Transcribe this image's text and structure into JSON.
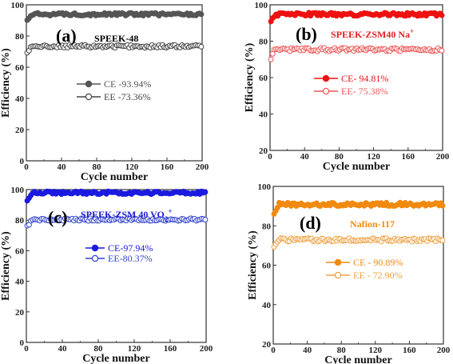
{
  "chart_data": [
    {
      "type": "scatter",
      "panel_label": "(a)",
      "name_label": "SPEEK-48",
      "name_color": "#000000",
      "xlabel": "Cycle number",
      "ylabel": "Efficiency (%)",
      "xlim": [
        0,
        200
      ],
      "ylim": [
        0,
        100
      ],
      "xticks": [
        "0",
        "40",
        "80",
        "120",
        "160",
        "200"
      ],
      "yticks": [
        "0",
        "20",
        "40",
        "60",
        "80",
        "100"
      ],
      "series": [
        {
          "name": "CE -93.94%",
          "mean": 93.94,
          "color": "#555555",
          "filled": true
        },
        {
          "name": "EE -73.36%",
          "mean": 73.36,
          "color": "#444444",
          "filled": false
        }
      ]
    },
    {
      "type": "scatter",
      "panel_label": "(b)",
      "name_label": "SPEEK-ZSM40 Na",
      "name_sup": "+",
      "name_color": "#e02020",
      "xlabel": "Cycle number",
      "ylabel": "Efficiency (%)",
      "xlim": [
        0,
        200
      ],
      "ylim": [
        20,
        100
      ],
      "xticks": [
        "0",
        "40",
        "80",
        "120",
        "160",
        "200"
      ],
      "yticks": [
        "20",
        "40",
        "60",
        "80",
        "100"
      ],
      "series": [
        {
          "name": "CE- 94.81%",
          "mean": 94.81,
          "color": "#ee1111",
          "filled": true
        },
        {
          "name": "EE- 75.38%",
          "mean": 75.38,
          "color": "#ee5555",
          "filled": false
        }
      ]
    },
    {
      "type": "scatter",
      "panel_label": "(c)",
      "name_label": "SPEEK-ZSM 40 VO",
      "name_sub": "2",
      "name_sup": "+",
      "name_color": "#1a1ad0",
      "xlabel": "Cycle number",
      "ylabel": "Efficiency (%)",
      "xlim": [
        0,
        200
      ],
      "ylim": [
        0,
        100
      ],
      "xticks": [
        "0",
        "40",
        "80",
        "120",
        "160",
        "200"
      ],
      "yticks": [
        "0",
        "20",
        "40",
        "60",
        "80",
        "100"
      ],
      "series": [
        {
          "name": "CE-97.94%",
          "mean": 97.94,
          "color": "#1a1ae0",
          "filled": true
        },
        {
          "name": "EE-80.37%",
          "mean": 80.37,
          "color": "#3344cc",
          "filled": false
        }
      ]
    },
    {
      "type": "scatter",
      "panel_label": "(d)",
      "name_label": "Nafion-117",
      "name_color": "#f08a10",
      "xlabel": "Cycle number",
      "ylabel": "Efficiency (%)",
      "xlim": [
        0,
        200
      ],
      "ylim": [
        20,
        100
      ],
      "xticks": [
        "0",
        "40",
        "80",
        "120",
        "160",
        "200"
      ],
      "yticks": [
        "20",
        "40",
        "60",
        "80",
        "100"
      ],
      "series": [
        {
          "name": "CE - 90.89%",
          "mean": 90.89,
          "color": "#f08a10",
          "filled": true
        },
        {
          "name": "EE - 72.90%",
          "mean": 72.9,
          "color": "#f0a040",
          "filled": false
        }
      ]
    }
  ]
}
